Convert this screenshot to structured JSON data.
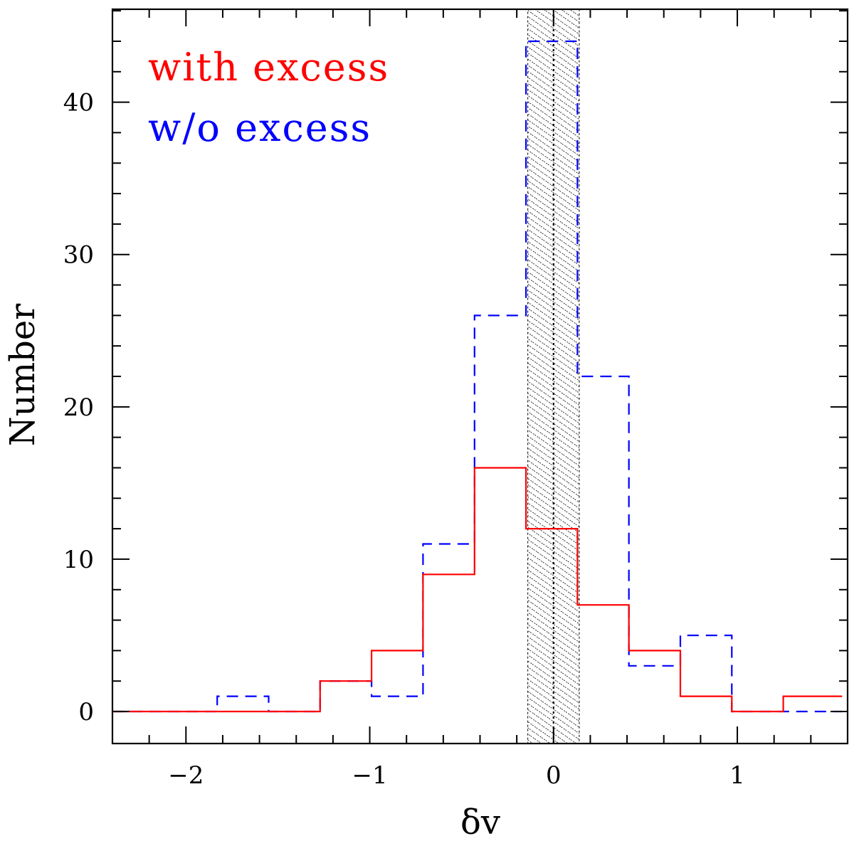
{
  "chart_data": {
    "type": "histogram",
    "xlabel": "δv",
    "ylabel": "Number",
    "xlim": [
      -2.4,
      1.6
    ],
    "ylim": [
      -2.1,
      46.1
    ],
    "x_ticks": [
      {
        "value": -2,
        "label": "−2"
      },
      {
        "value": -1,
        "label": "−1"
      },
      {
        "value": 0,
        "label": "0"
      },
      {
        "value": 1,
        "label": "1"
      }
    ],
    "y_ticks": [
      {
        "value": 0,
        "label": "0"
      },
      {
        "value": 10,
        "label": "10"
      },
      {
        "value": 20,
        "label": "20"
      },
      {
        "value": 30,
        "label": "30"
      },
      {
        "value": 40,
        "label": "40"
      }
    ],
    "x_minor_step": 0.2,
    "y_minor_step": 2,
    "bin_edges": [
      -2.4,
      -2.11,
      -1.83,
      -1.55,
      -1.27,
      -0.99,
      -0.71,
      -0.43,
      -0.15,
      0.13,
      0.41,
      0.69,
      0.97,
      1.25,
      1.57
    ],
    "series": [
      {
        "name": "with excess",
        "color": "#ff0000",
        "style": "solid",
        "values": [
          0,
          0,
          0,
          0,
          2,
          4,
          9,
          16,
          12,
          7,
          4,
          1,
          0,
          1
        ]
      },
      {
        "name": "w/o excess",
        "color": "#0000ff",
        "style": "dashed",
        "values": [
          0,
          0,
          1,
          0,
          2,
          1,
          11,
          26,
          44,
          22,
          3,
          5,
          0,
          0
        ]
      }
    ],
    "shaded_band": {
      "x_range": [
        -0.14,
        0.14
      ],
      "pattern": "hatched"
    },
    "reference_line": {
      "x": 0,
      "style": "dotted"
    },
    "legend": {
      "placement": "top-left",
      "entries": [
        {
          "label": "with excess",
          "color": "#ff0000"
        },
        {
          "label": "w/o excess",
          "color": "#0000ff"
        }
      ]
    }
  }
}
